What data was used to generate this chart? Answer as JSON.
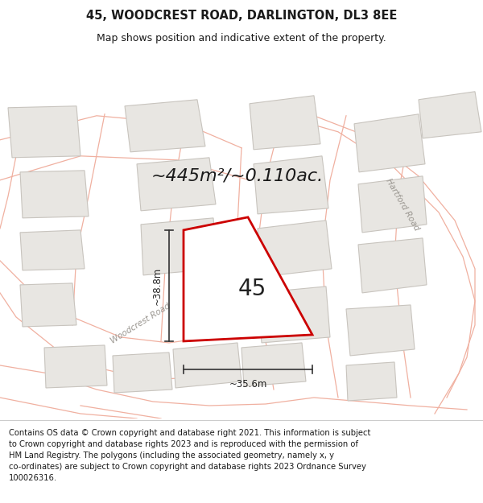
{
  "title_line1": "45, WOODCREST ROAD, DARLINGTON, DL3 8EE",
  "title_line2": "Map shows position and indicative extent of the property.",
  "area_text": "~445m²/~0.110ac.",
  "label_45": "45",
  "dim_width": "~35.6m",
  "dim_height": "~38.8m",
  "road_label1": "Woodcrest Road",
  "road_label2": "Hartford Road",
  "footer_text": "Contains OS data © Crown copyright and database right 2021. This information is subject\nto Crown copyright and database rights 2023 and is reproduced with the permission of\nHM Land Registry. The polygons (including the associated geometry, namely x, y\nco-ordinates) are subject to Crown copyright and database rights 2023 Ordnance Survey\n100026316.",
  "map_bg": "#f7f6f4",
  "plot_outline_color": "#cc0000",
  "road_line_color": "#f0b0a0",
  "building_fill": "#e8e6e2",
  "building_edge": "#c8c4be",
  "title_fontsize": 10.5,
  "subtitle_fontsize": 9,
  "footer_fontsize": 7.2,
  "area_fontsize": 16
}
